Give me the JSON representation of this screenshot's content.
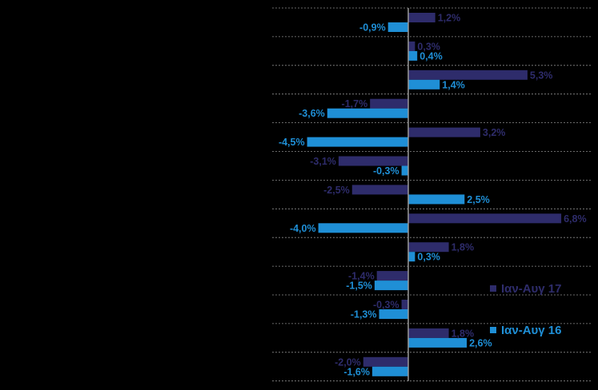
{
  "chart_data": {
    "type": "bar",
    "orientation": "horizontal",
    "categories": [
      "",
      "",
      "",
      "",
      "",
      "",
      "",
      "",
      "",
      "",
      "",
      "",
      ""
    ],
    "series": [
      {
        "name": "Ιαν-Αυγ 17",
        "color": "#2e2c6b",
        "values": [
          1.2,
          0.3,
          5.3,
          -1.7,
          3.2,
          -3.1,
          -2.5,
          6.8,
          1.8,
          -1.4,
          -0.3,
          1.8,
          -2.0
        ],
        "labels": [
          "1,2%",
          "0,3%",
          "5,3%",
          "-1,7%",
          "3,2%",
          "-3,1%",
          "-2,5%",
          "6,8%",
          "1,8%",
          "-1,4%",
          "-0,3%",
          "1,8%",
          "-2,0%"
        ]
      },
      {
        "name": "Ιαν-Αυγ 16",
        "color": "#1f8fd6",
        "values": [
          -0.9,
          0.4,
          1.4,
          -3.6,
          -4.5,
          -0.3,
          2.5,
          -4.0,
          0.3,
          -1.5,
          -1.3,
          2.6,
          -1.6
        ],
        "labels": [
          "-0,9%",
          "0,4%",
          "1,4%",
          "-3,6%",
          "-4,5%",
          "-0,3%",
          "2,5%",
          "-4,0%",
          "0,3%",
          "-1,5%",
          "-1,3%",
          "2,6%",
          "-1,6%"
        ]
      }
    ],
    "legend_position": "right",
    "grid": "dashed horizontal separators",
    "xlabel": "",
    "ylabel": "",
    "title": ""
  }
}
